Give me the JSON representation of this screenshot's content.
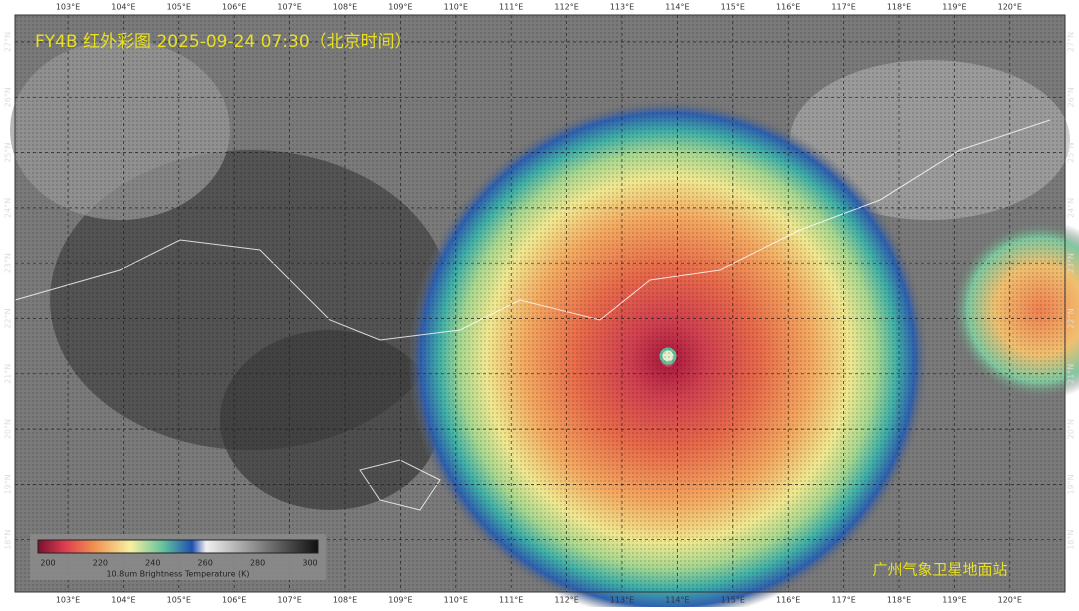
{
  "title": "FY4B 红外彩图 2025-09-24 07:30（北京时间）",
  "map": {
    "longitudes": [
      "103°E",
      "104°E",
      "105°E",
      "106°E",
      "107°E",
      "108°E",
      "109°E",
      "110°E",
      "111°E",
      "112°E",
      "113°E",
      "114°E",
      "115°E",
      "116°E",
      "117°E",
      "118°E",
      "119°E",
      "120°E"
    ],
    "latitudes": [
      "27°N",
      "26°N",
      "25°N",
      "24°N",
      "23°N",
      "22°N",
      "21°N",
      "20°N",
      "19°N",
      "18°N"
    ]
  },
  "colorbar": {
    "ticks": [
      200,
      220,
      240,
      260,
      280,
      300
    ],
    "label": "10.8um Brightness Temperature (K)"
  },
  "watermark": "广州气象卫星地面站"
}
